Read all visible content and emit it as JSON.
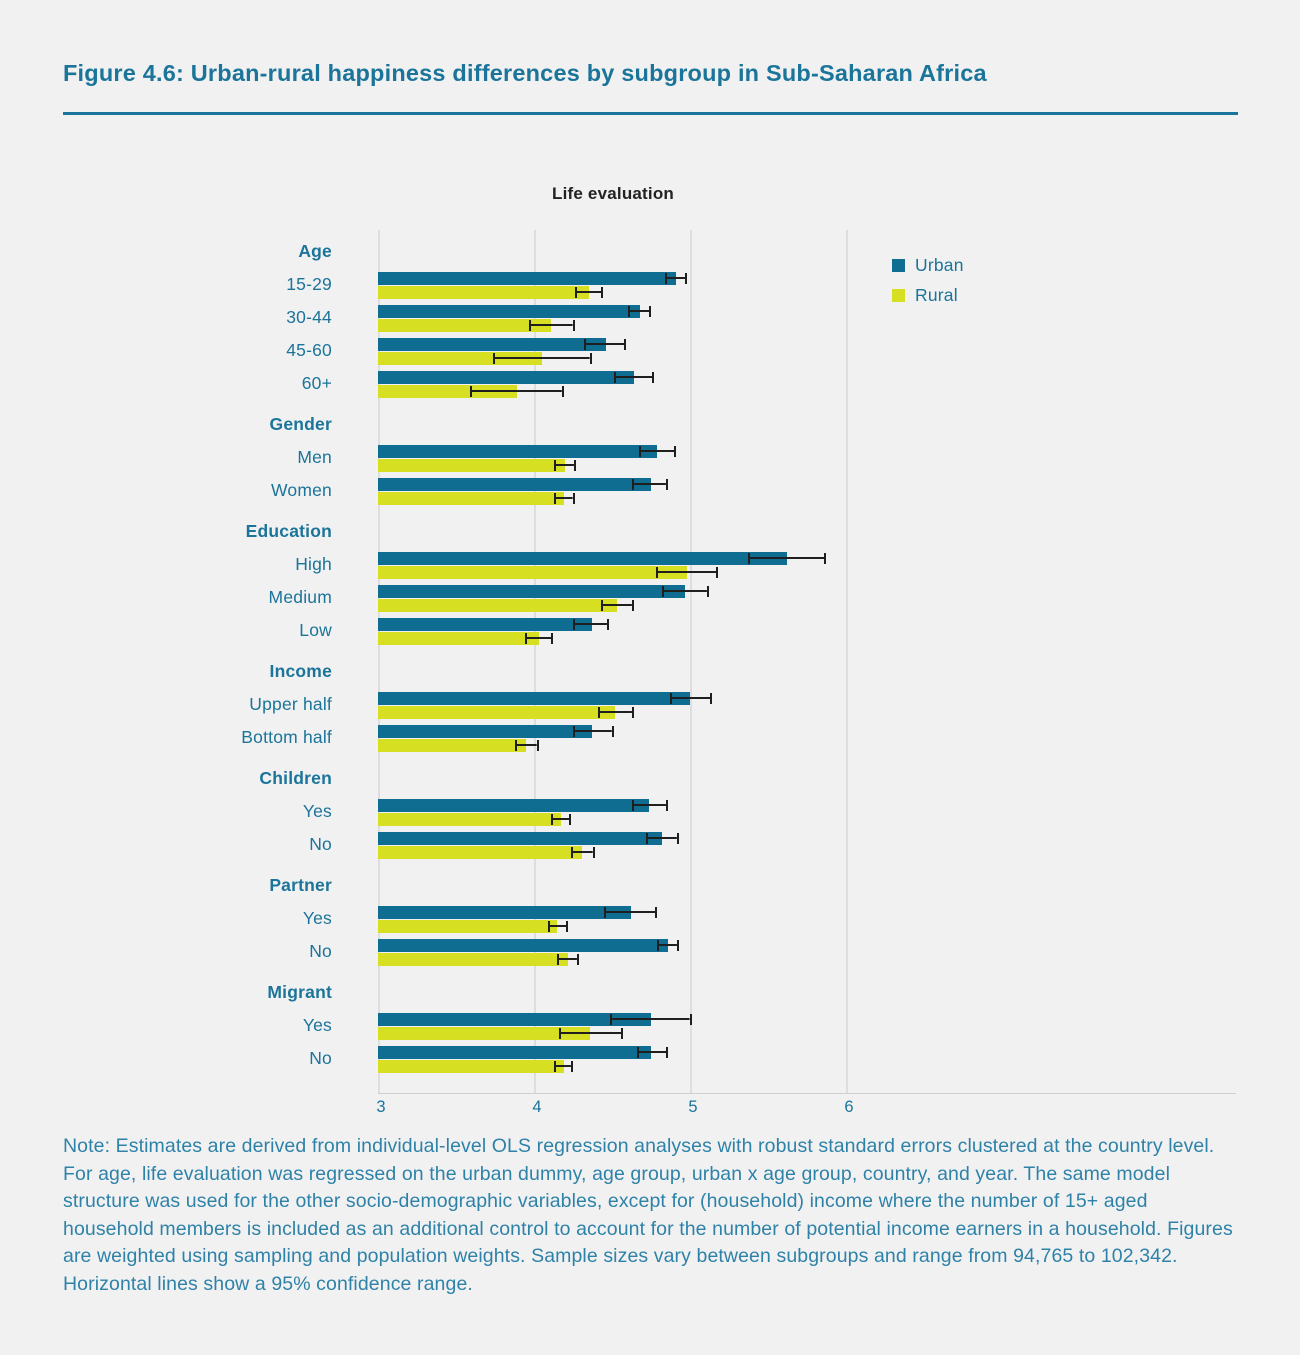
{
  "figure": {
    "title": "Figure 4.6: Urban-rural happiness differences by subgroup in Sub-Saharan Africa",
    "note": "Note: Estimates are derived from individual-level OLS regression analyses with robust standard errors clustered at the country level. For age, life evaluation was regressed on the urban dummy, age group, urban x age group, country, and year. The same model structure was used for the other socio-demographic variables, except for (household) income where the number of 15+ aged household members is included as an additional control to account for the number of potential income earners in a household. Figures are weighted using sampling and population weights. Sample sizes vary between subgroups and range from 94,765 to 102,342. Horizontal lines show a 95% confidence range."
  },
  "chart_data": {
    "type": "bar",
    "orientation": "horizontal",
    "title": "Life evaluation",
    "xlabel": "",
    "ylabel": "",
    "xlim": [
      3,
      6
    ],
    "x_ticks": [
      "3",
      "4",
      "5",
      "6"
    ],
    "grid": "vertical",
    "legend_position": "upper-right",
    "error_bars": "95% confidence range",
    "series_names": [
      "Urban",
      "Rural"
    ],
    "colors": {
      "urban": "#0f6d92",
      "rural": "#d7df23",
      "error": "#1f1f1f"
    },
    "groups": [
      {
        "label": "Age",
        "rows": [
          {
            "label": "15-29",
            "urban": 4.91,
            "urban_ci": [
              4.84,
              4.98
            ],
            "rural": 4.35,
            "rural_ci": [
              4.26,
              4.44
            ]
          },
          {
            "label": "30-44",
            "urban": 4.68,
            "urban_ci": [
              4.6,
              4.75
            ],
            "rural": 4.11,
            "rural_ci": [
              3.97,
              4.26
            ]
          },
          {
            "label": "45-60",
            "urban": 4.46,
            "urban_ci": [
              4.32,
              4.59
            ],
            "rural": 4.05,
            "rural_ci": [
              3.74,
              4.37
            ]
          },
          {
            "label": "60+",
            "urban": 4.64,
            "urban_ci": [
              4.51,
              4.77
            ],
            "rural": 3.89,
            "rural_ci": [
              3.59,
              4.19
            ]
          }
        ]
      },
      {
        "label": "Gender",
        "rows": [
          {
            "label": "Men",
            "urban": 4.79,
            "urban_ci": [
              4.67,
              4.91
            ],
            "rural": 4.2,
            "rural_ci": [
              4.13,
              4.27
            ]
          },
          {
            "label": "Women",
            "urban": 4.75,
            "urban_ci": [
              4.63,
              4.86
            ],
            "rural": 4.19,
            "rural_ci": [
              4.13,
              4.26
            ]
          }
        ]
      },
      {
        "label": "Education",
        "rows": [
          {
            "label": "High",
            "urban": 5.62,
            "urban_ci": [
              5.37,
              5.87
            ],
            "rural": 4.98,
            "rural_ci": [
              4.78,
              5.18
            ]
          },
          {
            "label": "Medium",
            "urban": 4.97,
            "urban_ci": [
              4.82,
              5.12
            ],
            "rural": 4.53,
            "rural_ci": [
              4.43,
              4.64
            ]
          },
          {
            "label": "Low",
            "urban": 4.37,
            "urban_ci": [
              4.25,
              4.48
            ],
            "rural": 4.03,
            "rural_ci": [
              3.94,
              4.12
            ]
          }
        ]
      },
      {
        "label": "Income",
        "rows": [
          {
            "label": "Upper half",
            "urban": 5.0,
            "urban_ci": [
              4.87,
              5.14
            ],
            "rural": 4.52,
            "rural_ci": [
              4.41,
              4.64
            ]
          },
          {
            "label": "Bottom half",
            "urban": 4.37,
            "urban_ci": [
              4.25,
              4.51
            ],
            "rural": 3.95,
            "rural_ci": [
              3.88,
              4.03
            ]
          }
        ]
      },
      {
        "label": "Children",
        "rows": [
          {
            "label": "Yes",
            "urban": 4.74,
            "urban_ci": [
              4.63,
              4.86
            ],
            "rural": 4.17,
            "rural_ci": [
              4.11,
              4.24
            ]
          },
          {
            "label": "No",
            "urban": 4.82,
            "urban_ci": [
              4.72,
              4.93
            ],
            "rural": 4.31,
            "rural_ci": [
              4.24,
              4.39
            ]
          }
        ]
      },
      {
        "label": "Partner",
        "rows": [
          {
            "label": "Yes",
            "urban": 4.62,
            "urban_ci": [
              4.45,
              4.79
            ],
            "rural": 4.15,
            "rural_ci": [
              4.09,
              4.22
            ]
          },
          {
            "label": "No",
            "urban": 4.86,
            "urban_ci": [
              4.79,
              4.93
            ],
            "rural": 4.22,
            "rural_ci": [
              4.15,
              4.29
            ]
          }
        ]
      },
      {
        "label": "Migrant",
        "rows": [
          {
            "label": "Yes",
            "urban": 4.75,
            "urban_ci": [
              4.49,
              5.01
            ],
            "rural": 4.36,
            "rural_ci": [
              4.16,
              4.57
            ]
          },
          {
            "label": "No",
            "urban": 4.75,
            "urban_ci": [
              4.66,
              4.86
            ],
            "rural": 4.19,
            "rural_ci": [
              4.13,
              4.25
            ]
          }
        ]
      }
    ]
  }
}
